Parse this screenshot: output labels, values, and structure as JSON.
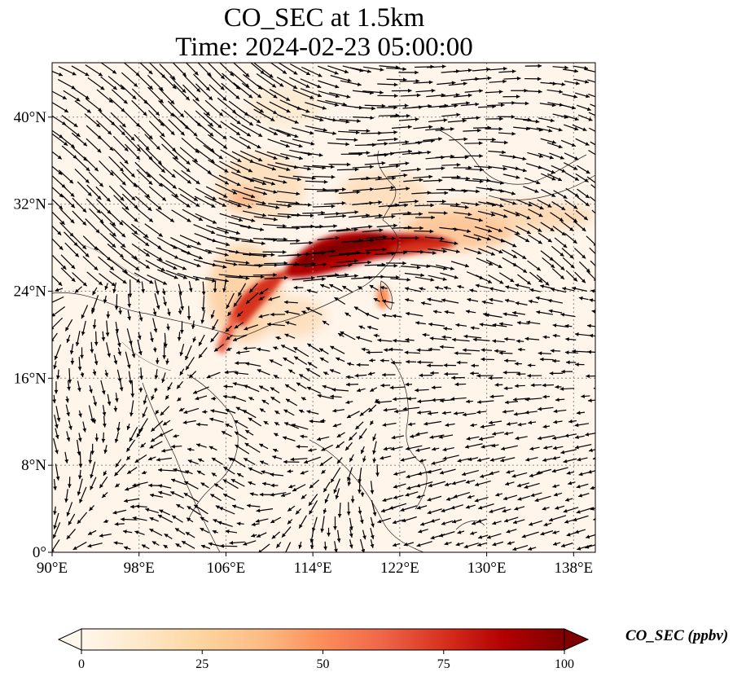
{
  "title_line1": "CO_SEC at 1.5km",
  "title_line2": "Time: 2024-02-23 05:00:00",
  "map": {
    "lon_range": [
      90,
      140
    ],
    "lat_range": [
      0,
      45
    ],
    "lon_ticks": [
      90,
      98,
      106,
      114,
      122,
      130,
      138
    ],
    "lat_ticks": [
      0,
      8,
      16,
      24,
      32,
      40
    ],
    "lon_tick_labels": [
      "90°E",
      "98°E",
      "106°E",
      "114°E",
      "122°E",
      "130°E",
      "138°E"
    ],
    "lat_tick_labels": [
      "0°",
      "8°N",
      "16°N",
      "24°N",
      "32°N",
      "40°N"
    ],
    "gridlines": true,
    "background_color": "#fff5eb",
    "plume_color": "#b30000"
  },
  "colorbar": {
    "title": "CO_SEC (ppbv)",
    "ticks": [
      0,
      25,
      50,
      75,
      100
    ],
    "tick_labels": [
      "0",
      "25",
      "50",
      "75",
      "100"
    ],
    "range": [
      0,
      100
    ],
    "extend": "both",
    "colormap": "OrRd",
    "stops": [
      "#fff7ec",
      "#fee8c8",
      "#fdd49e",
      "#fdbb84",
      "#fc8d59",
      "#ef6548",
      "#d7301f",
      "#b30000",
      "#7f0000"
    ]
  },
  "wind_field": {
    "direction": "predominantly westerly/north-westerly over mainland, easterly over ocean",
    "style": "black arrows"
  }
}
